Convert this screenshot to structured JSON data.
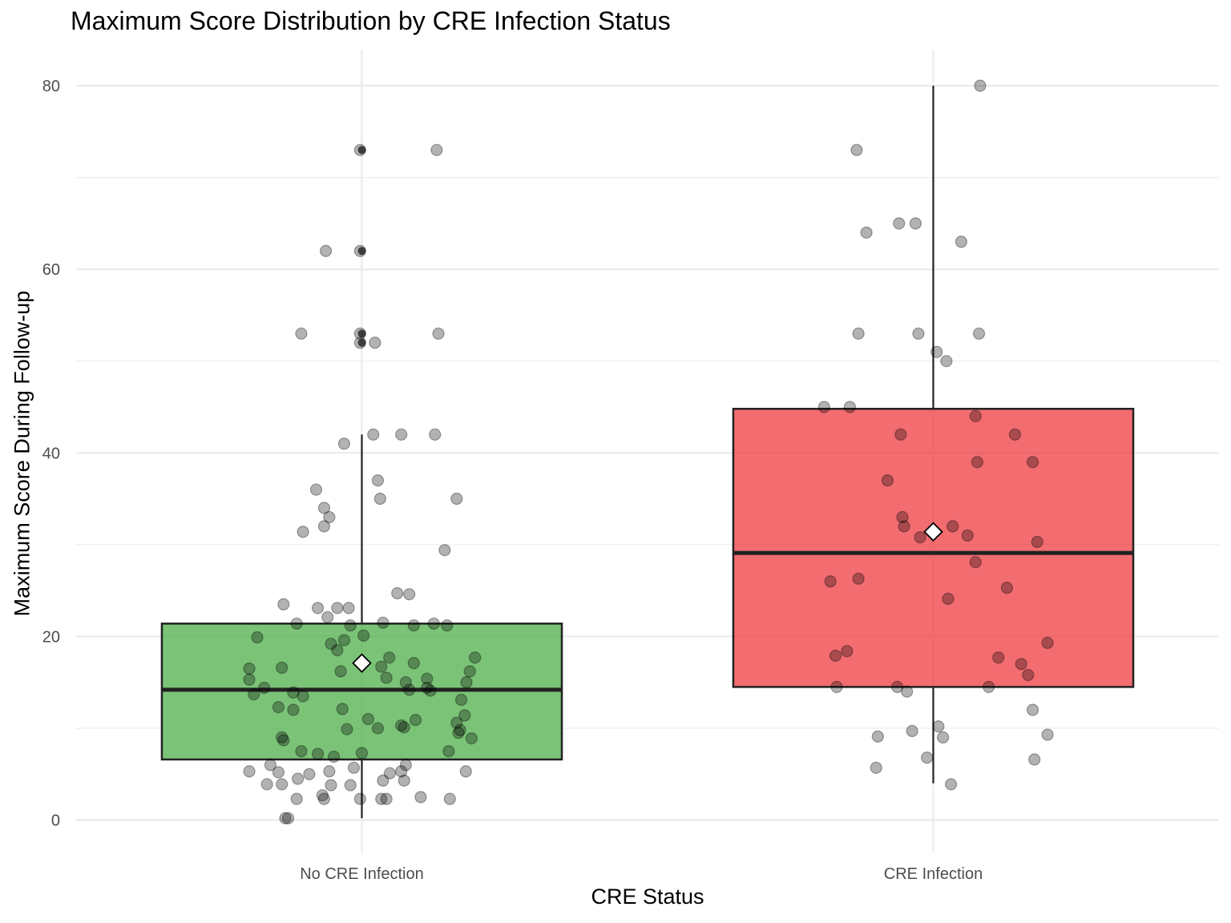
{
  "chart_data": {
    "type": "box",
    "title": "Maximum Score Distribution by CRE Infection Status",
    "xlabel": "CRE Status",
    "ylabel": "Maximum Score During Follow-up",
    "categories": [
      "No CRE Infection",
      "CRE Infection"
    ],
    "ylim": [
      -3.5,
      83.5
    ],
    "yticks": [
      0,
      20,
      40,
      60,
      80
    ],
    "grid": true,
    "legend": "none",
    "series": [
      {
        "color": "#4daf4a",
        "box": {
          "q1": 6.6,
          "median": 14.2,
          "q3": 21.4,
          "whisker_low": 0.2,
          "whisker_high": 42
        },
        "mean": 17.1,
        "outliers": [
          73,
          62,
          53,
          52
        ],
        "points": [
          {
            "x": -0.003,
            "y": 73
          },
          {
            "x": 0.131,
            "y": 73
          },
          {
            "x": -0.063,
            "y": 62
          },
          {
            "x": -0.003,
            "y": 62
          },
          {
            "x": -0.106,
            "y": 53
          },
          {
            "x": -0.003,
            "y": 53
          },
          {
            "x": 0.134,
            "y": 53
          },
          {
            "x": -0.003,
            "y": 52
          },
          {
            "x": 0.023,
            "y": 52
          },
          {
            "x": -0.031,
            "y": 41
          },
          {
            "x": 0.02,
            "y": 42
          },
          {
            "x": 0.069,
            "y": 42
          },
          {
            "x": 0.128,
            "y": 42
          },
          {
            "x": -0.08,
            "y": 36
          },
          {
            "x": 0.028,
            "y": 37
          },
          {
            "x": 0.032,
            "y": 35
          },
          {
            "x": 0.166,
            "y": 35
          },
          {
            "x": -0.066,
            "y": 34
          },
          {
            "x": -0.057,
            "y": 33
          },
          {
            "x": -0.066,
            "y": 32
          },
          {
            "x": -0.103,
            "y": 31.4
          },
          {
            "x": 0.145,
            "y": 29.4
          },
          {
            "x": 0.062,
            "y": 24.7
          },
          {
            "x": 0.083,
            "y": 24.6
          },
          {
            "x": -0.137,
            "y": 23.5
          },
          {
            "x": -0.077,
            "y": 23.1
          },
          {
            "x": -0.043,
            "y": 23.1
          },
          {
            "x": -0.023,
            "y": 23.1
          },
          {
            "x": -0.06,
            "y": 22.1
          },
          {
            "x": -0.114,
            "y": 21.4
          },
          {
            "x": -0.02,
            "y": 21.2
          },
          {
            "x": 0.037,
            "y": 21.5
          },
          {
            "x": 0.091,
            "y": 21.2
          },
          {
            "x": 0.126,
            "y": 21.4
          },
          {
            "x": 0.149,
            "y": 21.2
          },
          {
            "x": -0.183,
            "y": 19.9
          },
          {
            "x": -0.054,
            "y": 19.2
          },
          {
            "x": -0.031,
            "y": 19.6
          },
          {
            "x": 0.003,
            "y": 20.1
          },
          {
            "x": -0.043,
            "y": 18.5
          },
          {
            "x": -0.197,
            "y": 16.5
          },
          {
            "x": -0.14,
            "y": 16.6
          },
          {
            "x": -0.037,
            "y": 16.2
          },
          {
            "x": 0.034,
            "y": 16.7
          },
          {
            "x": 0.048,
            "y": 17.7
          },
          {
            "x": 0.091,
            "y": 17.1
          },
          {
            "x": 0.198,
            "y": 17.7
          },
          {
            "x": 0.189,
            "y": 16.2
          },
          {
            "x": -0.197,
            "y": 15.3
          },
          {
            "x": 0.043,
            "y": 15.5
          },
          {
            "x": 0.077,
            "y": 15.0
          },
          {
            "x": 0.114,
            "y": 15.4
          },
          {
            "x": 0.183,
            "y": 15.0
          },
          {
            "x": -0.171,
            "y": 14.4
          },
          {
            "x": -0.12,
            "y": 13.9
          },
          {
            "x": 0.083,
            "y": 14.2
          },
          {
            "x": 0.114,
            "y": 14.4
          },
          {
            "x": 0.12,
            "y": 14.1
          },
          {
            "x": -0.189,
            "y": 13.7
          },
          {
            "x": -0.103,
            "y": 13.5
          },
          {
            "x": 0.174,
            "y": 13.1
          },
          {
            "x": -0.146,
            "y": 12.3
          },
          {
            "x": -0.12,
            "y": 12.0
          },
          {
            "x": -0.034,
            "y": 12.1
          },
          {
            "x": 0.18,
            "y": 11.4
          },
          {
            "x": 0.011,
            "y": 11.0
          },
          {
            "x": 0.069,
            "y": 10.3
          },
          {
            "x": 0.094,
            "y": 10.9
          },
          {
            "x": 0.166,
            "y": 10.6
          },
          {
            "x": -0.026,
            "y": 9.9
          },
          {
            "x": 0.028,
            "y": 10.0
          },
          {
            "x": 0.074,
            "y": 10.1
          },
          {
            "x": 0.169,
            "y": 9.5
          },
          {
            "x": 0.172,
            "y": 9.8
          },
          {
            "x": -0.14,
            "y": 9.0
          },
          {
            "x": -0.137,
            "y": 8.7
          },
          {
            "x": 0.192,
            "y": 8.9
          },
          {
            "x": -0.106,
            "y": 7.5
          },
          {
            "x": -0.077,
            "y": 7.2
          },
          {
            "x": -0.049,
            "y": 6.9
          },
          {
            "x": 0.0,
            "y": 7.3
          },
          {
            "x": 0.152,
            "y": 7.5
          },
          {
            "x": -0.16,
            "y": 6.0
          },
          {
            "x": 0.077,
            "y": 6.0
          },
          {
            "x": -0.197,
            "y": 5.3
          },
          {
            "x": -0.146,
            "y": 5.2
          },
          {
            "x": -0.092,
            "y": 5.0
          },
          {
            "x": -0.057,
            "y": 5.3
          },
          {
            "x": -0.014,
            "y": 5.7
          },
          {
            "x": 0.049,
            "y": 5.1
          },
          {
            "x": 0.069,
            "y": 5.3
          },
          {
            "x": 0.182,
            "y": 5.3
          },
          {
            "x": -0.166,
            "y": 3.9
          },
          {
            "x": -0.14,
            "y": 3.9
          },
          {
            "x": -0.112,
            "y": 4.5
          },
          {
            "x": -0.054,
            "y": 3.8
          },
          {
            "x": -0.02,
            "y": 3.8
          },
          {
            "x": 0.037,
            "y": 4.3
          },
          {
            "x": 0.074,
            "y": 4.3
          },
          {
            "x": -0.114,
            "y": 2.3
          },
          {
            "x": -0.069,
            "y": 2.7
          },
          {
            "x": -0.066,
            "y": 2.3
          },
          {
            "x": -0.003,
            "y": 2.3
          },
          {
            "x": 0.034,
            "y": 2.3
          },
          {
            "x": 0.043,
            "y": 2.3
          },
          {
            "x": 0.103,
            "y": 2.5
          },
          {
            "x": 0.154,
            "y": 2.3
          },
          {
            "x": -0.134,
            "y": 0.2
          },
          {
            "x": -0.129,
            "y": 0.2
          }
        ]
      },
      {
        "color": "#ee3b40",
        "box": {
          "q1": 14.5,
          "median": 29.1,
          "q3": 44.8,
          "whisker_low": 4,
          "whisker_high": 80
        },
        "mean": 31.4,
        "outliers": [],
        "points": [
          {
            "x": 0.082,
            "y": 80
          },
          {
            "x": -0.134,
            "y": 73
          },
          {
            "x": -0.06,
            "y": 65
          },
          {
            "x": -0.031,
            "y": 65
          },
          {
            "x": -0.117,
            "y": 64
          },
          {
            "x": 0.049,
            "y": 63
          },
          {
            "x": -0.131,
            "y": 53
          },
          {
            "x": -0.026,
            "y": 53
          },
          {
            "x": 0.08,
            "y": 53
          },
          {
            "x": 0.006,
            "y": 51
          },
          {
            "x": 0.023,
            "y": 50
          },
          {
            "x": -0.191,
            "y": 45
          },
          {
            "x": -0.146,
            "y": 45
          },
          {
            "x": 0.074,
            "y": 44
          },
          {
            "x": -0.057,
            "y": 42
          },
          {
            "x": 0.143,
            "y": 42
          },
          {
            "x": 0.077,
            "y": 39
          },
          {
            "x": 0.174,
            "y": 39
          },
          {
            "x": -0.08,
            "y": 37
          },
          {
            "x": -0.054,
            "y": 33
          },
          {
            "x": 0.034,
            "y": 32
          },
          {
            "x": -0.051,
            "y": 32
          },
          {
            "x": 0.06,
            "y": 31
          },
          {
            "x": -0.023,
            "y": 30.8
          },
          {
            "x": 0.182,
            "y": 30.3
          },
          {
            "x": 0.074,
            "y": 28.1
          },
          {
            "x": -0.18,
            "y": 26
          },
          {
            "x": -0.131,
            "y": 26.3
          },
          {
            "x": 0.129,
            "y": 25.3
          },
          {
            "x": 0.026,
            "y": 24.1
          },
          {
            "x": 0.2,
            "y": 19.3
          },
          {
            "x": -0.151,
            "y": 18.4
          },
          {
            "x": -0.171,
            "y": 17.9
          },
          {
            "x": 0.114,
            "y": 17.7
          },
          {
            "x": 0.154,
            "y": 17
          },
          {
            "x": 0.166,
            "y": 15.8
          },
          {
            "x": -0.169,
            "y": 14.5
          },
          {
            "x": -0.063,
            "y": 14.5
          },
          {
            "x": -0.046,
            "y": 14
          },
          {
            "x": 0.097,
            "y": 14.5
          },
          {
            "x": 0.174,
            "y": 12
          },
          {
            "x": 0.009,
            "y": 10.2
          },
          {
            "x": -0.037,
            "y": 9.7
          },
          {
            "x": -0.097,
            "y": 9.1
          },
          {
            "x": 0.017,
            "y": 9
          },
          {
            "x": 0.2,
            "y": 9.3
          },
          {
            "x": -0.011,
            "y": 6.8
          },
          {
            "x": 0.177,
            "y": 6.6
          },
          {
            "x": -0.1,
            "y": 5.7
          },
          {
            "x": 0.031,
            "y": 3.9
          }
        ]
      }
    ]
  }
}
